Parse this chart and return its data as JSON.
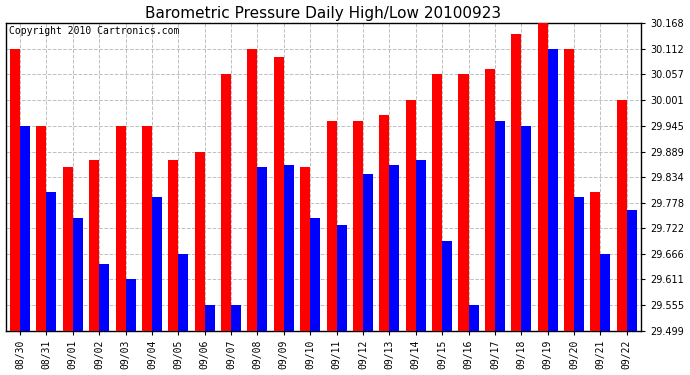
{
  "title": "Barometric Pressure Daily High/Low 20100923",
  "copyright": "Copyright 2010 Cartronics.com",
  "background_color": "#ffffff",
  "plot_bg_color": "#ffffff",
  "grid_color": "#b0b0b0",
  "bar_width": 0.38,
  "ylim": [
    29.499,
    30.168
  ],
  "yticks": [
    29.499,
    29.555,
    29.611,
    29.666,
    29.722,
    29.778,
    29.834,
    29.889,
    29.945,
    30.001,
    30.057,
    30.112,
    30.168
  ],
  "dates": [
    "08/30",
    "08/31",
    "09/01",
    "09/02",
    "09/03",
    "09/04",
    "09/05",
    "09/06",
    "09/07",
    "09/08",
    "09/09",
    "09/10",
    "09/11",
    "09/12",
    "09/13",
    "09/14",
    "09/15",
    "09/16",
    "09/17",
    "09/18",
    "09/19",
    "09/20",
    "09/21",
    "09/22"
  ],
  "highs": [
    30.112,
    29.945,
    29.856,
    29.87,
    29.945,
    29.945,
    29.87,
    29.889,
    30.057,
    30.112,
    30.095,
    29.856,
    29.956,
    29.956,
    29.968,
    30.001,
    30.057,
    30.057,
    30.068,
    30.145,
    30.168,
    30.112,
    29.8,
    30.001
  ],
  "lows": [
    29.945,
    29.8,
    29.745,
    29.645,
    29.611,
    29.79,
    29.666,
    29.556,
    29.555,
    29.856,
    29.86,
    29.745,
    29.73,
    29.84,
    29.86,
    29.87,
    29.695,
    29.556,
    29.956,
    29.945,
    30.112,
    29.79,
    29.666,
    29.762
  ],
  "high_color": "#ff0000",
  "low_color": "#0000ff",
  "title_fontsize": 11,
  "tick_fontsize": 7,
  "copyright_fontsize": 7
}
